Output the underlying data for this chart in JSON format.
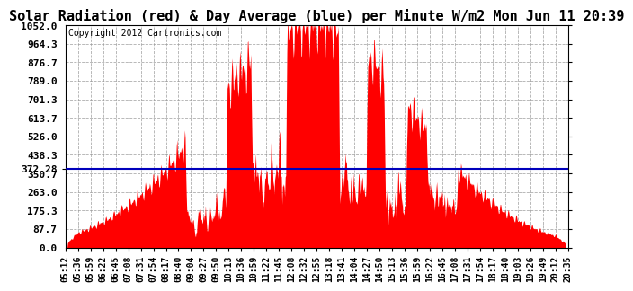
{
  "title": "Solar Radiation (red) & Day Average (blue) per Minute W/m2 Mon Jun 11 20:39",
  "copyright": "Copyright 2012 Cartronics.com",
  "day_average": 372.28,
  "ymin": 0.0,
  "ymax": 1052.0,
  "yticks": [
    0.0,
    87.7,
    175.3,
    263.0,
    350.7,
    438.3,
    526.0,
    613.7,
    701.3,
    789.0,
    876.7,
    964.3,
    1052.0
  ],
  "bar_color": "#FF0000",
  "line_color": "#0000BB",
  "background_color": "#FFFFFF",
  "grid_color": "#999999",
  "title_fontsize": 11,
  "copyright_fontsize": 7,
  "ytick_fontsize": 8,
  "xtick_fontsize": 7,
  "xtick_labels": [
    "05:12",
    "05:36",
    "05:59",
    "06:22",
    "06:45",
    "07:08",
    "07:31",
    "07:54",
    "08:17",
    "08:40",
    "09:04",
    "09:27",
    "09:50",
    "10:13",
    "10:36",
    "10:59",
    "11:22",
    "11:45",
    "12:08",
    "12:32",
    "12:55",
    "13:18",
    "13:41",
    "14:04",
    "14:27",
    "14:50",
    "15:13",
    "15:36",
    "15:59",
    "16:22",
    "16:45",
    "17:08",
    "17:31",
    "17:54",
    "18:17",
    "18:40",
    "19:03",
    "19:26",
    "19:49",
    "20:12",
    "20:35"
  ]
}
